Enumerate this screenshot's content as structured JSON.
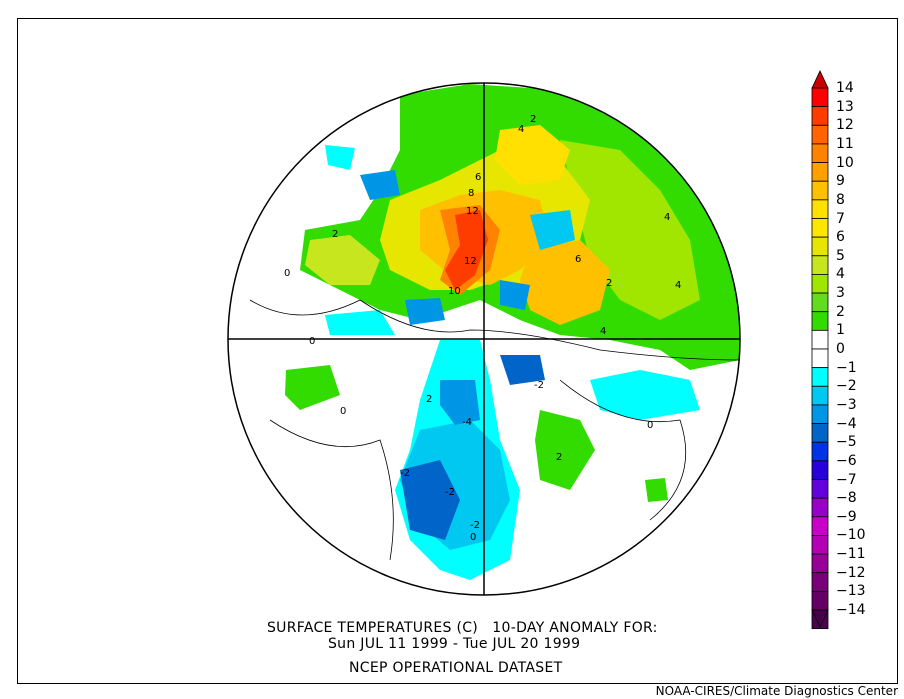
{
  "title": {
    "line1": "SURFACE TEMPERATURES (C)   10-DAY ANOMALY FOR:",
    "line2": "Sun JUL 11 1999 - Tue JUL 20 1999",
    "line3": "NCEP OPERATIONAL DATASET"
  },
  "credit": "NOAA-CIRES/Climate Diagnostics Center",
  "colorbar": {
    "labels": [
      "14",
      "13",
      "12",
      "11",
      "10",
      "9",
      "8",
      "7",
      "6",
      "5",
      "4",
      "3",
      "2",
      "1",
      "0",
      "−1",
      "−2",
      "−3",
      "−4",
      "−5",
      "−6",
      "−7",
      "−8",
      "−9",
      "−10",
      "−11",
      "−12",
      "−13",
      "−14"
    ],
    "colors": [
      "#ff0000",
      "#ff3c00",
      "#ff6400",
      "#ff8200",
      "#ffa000",
      "#ffc000",
      "#ffe000",
      "#ffe600",
      "#e6e600",
      "#c8e61e",
      "#a0e600",
      "#64dc1e",
      "#32dc00",
      "#ffffff",
      "#ffffff",
      "#00ffff",
      "#00c8f0",
      "#0096e6",
      "#0064c8",
      "#0032e6",
      "#2800dc",
      "#6400dc",
      "#9600c8",
      "#c800c8",
      "#b400b4",
      "#960096",
      "#780078",
      "#640064",
      "#500050"
    ],
    "top_arrow_color": "#c80000",
    "bottom_arrow_color": "#46004b"
  },
  "map": {
    "contour_labels": [
      "2",
      "4",
      "6",
      "8",
      "12",
      "12",
      "10",
      "2",
      "4",
      "6",
      "4",
      "4",
      "2",
      "0",
      "0",
      "-2",
      "-4",
      "-2",
      "-2",
      "0",
      "2",
      "2",
      "0",
      "0",
      "-2"
    ]
  }
}
